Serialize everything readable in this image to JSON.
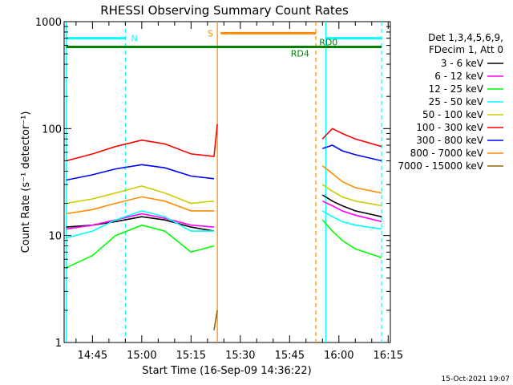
{
  "chart_data": {
    "type": "line",
    "title": "RHESSI Observing Summary Count Rates",
    "xlabel": "Start Time (16-Sep-09 14:36:22)",
    "ylabel": "Count Rate (s⁻¹ detector⁻¹)",
    "yscale": "log",
    "ylim": [
      1,
      1000
    ],
    "xlim": [
      "14:36:22",
      "16:15:40"
    ],
    "x_ticks": [
      "14:45",
      "15:00",
      "15:15",
      "15:30",
      "15:45",
      "16:00",
      "16:15"
    ],
    "y_ticks": [
      "1",
      "10",
      "100",
      "1000"
    ],
    "legend": {
      "position": "top-right",
      "header": [
        "Det 1,3,4,5,6,9,",
        "FDecim 1, Att 0"
      ]
    },
    "data_gap": {
      "start": "15:23",
      "end": "15:55"
    },
    "series": [
      {
        "name": "3 - 6 keV",
        "color": "#000000",
        "x": [
          "14:37",
          "14:45",
          "14:52",
          "15:00",
          "15:07",
          "15:15",
          "15:22",
          "15:55",
          "15:58",
          "16:01",
          "16:05",
          "16:13"
        ],
        "values": [
          12,
          12.5,
          13.5,
          15,
          14,
          12,
          11,
          24,
          21,
          19,
          17,
          15
        ]
      },
      {
        "name": "6 - 12 keV",
        "color": "#ff00ff",
        "x": [
          "14:37",
          "14:45",
          "14:52",
          "15:00",
          "15:07",
          "15:15",
          "15:22",
          "15:55",
          "15:58",
          "16:01",
          "16:05",
          "16:13"
        ],
        "values": [
          11.5,
          12.5,
          14,
          16,
          14.5,
          12.5,
          12,
          21,
          19,
          17,
          15.5,
          13.5
        ]
      },
      {
        "name": "12 - 25 keV",
        "color": "#00ff00",
        "x": [
          "14:37",
          "14:45",
          "14:52",
          "15:00",
          "15:07",
          "15:15",
          "15:22",
          "15:55",
          "15:58",
          "16:01",
          "16:05",
          "16:13"
        ],
        "values": [
          5,
          6.5,
          10,
          12.5,
          11,
          7,
          8,
          14,
          11,
          9,
          7.5,
          6.2
        ]
      },
      {
        "name": "25 - 50 keV",
        "color": "#00ffff",
        "x": [
          "14:37",
          "14:45",
          "14:52",
          "15:00",
          "15:07",
          "15:15",
          "15:22",
          "15:55",
          "15:58",
          "16:01",
          "16:05",
          "16:13"
        ],
        "values": [
          9.5,
          11,
          14,
          17,
          15,
          11,
          11,
          17,
          15,
          13.5,
          12.5,
          11.5
        ]
      },
      {
        "name": "50 - 100 keV",
        "color": "#cccc00",
        "x": [
          "14:37",
          "14:45",
          "14:52",
          "15:00",
          "15:07",
          "15:15",
          "15:22",
          "15:55",
          "15:58",
          "16:01",
          "16:05",
          "16:13"
        ],
        "values": [
          20,
          22,
          25,
          29,
          25,
          20,
          21,
          30,
          26,
          23,
          21,
          19
        ]
      },
      {
        "name": "100 - 300 keV",
        "color": "#ff0000",
        "x": [
          "14:37",
          "14:45",
          "14:52",
          "15:00",
          "15:07",
          "15:15",
          "15:22",
          "15:23",
          "15:55",
          "15:58",
          "16:01",
          "16:05",
          "16:13"
        ],
        "values": [
          50,
          58,
          68,
          78,
          72,
          58,
          55,
          110,
          80,
          100,
          90,
          80,
          68
        ]
      },
      {
        "name": "300 - 800 keV",
        "color": "#0000ff",
        "x": [
          "14:37",
          "14:45",
          "14:52",
          "15:00",
          "15:07",
          "15:15",
          "15:22",
          "15:55",
          "15:58",
          "16:01",
          "16:05",
          "16:13"
        ],
        "values": [
          33,
          37,
          42,
          46,
          43,
          36,
          34,
          65,
          70,
          62,
          57,
          50
        ]
      },
      {
        "name": "800 - 7000 keV",
        "color": "#ff8c00",
        "x": [
          "14:37",
          "14:45",
          "14:52",
          "15:00",
          "15:07",
          "15:15",
          "15:22",
          "15:55",
          "15:58",
          "16:01",
          "16:05",
          "16:13"
        ],
        "values": [
          16,
          17.5,
          20,
          23,
          21,
          17,
          17,
          45,
          38,
          32,
          28,
          25
        ]
      },
      {
        "name": "7000 - 15000 keV",
        "color": "#996600",
        "x": [
          "15:22",
          "15:23"
        ],
        "values": [
          1.3,
          2
        ]
      }
    ],
    "annotations": [
      {
        "label": "N",
        "color": "#00ffff",
        "level": 700,
        "segments": [
          [
            "14:37",
            "14:55"
          ],
          [
            "15:56",
            "16:13"
          ]
        ]
      },
      {
        "label": "S",
        "color": "#ff8c00",
        "level": 780,
        "segments": [
          [
            "15:24",
            "15:53"
          ]
        ]
      },
      {
        "label": "RD0",
        "color": "#008000",
        "level": 580,
        "segments": [
          [
            "14:37",
            "16:13"
          ]
        ]
      },
      {
        "label": "RD4",
        "color": "#008000",
        "level": 580,
        "segments": []
      }
    ],
    "vertical_markers": [
      {
        "x": "14:37",
        "color": "#00ffff",
        "style": "solid"
      },
      {
        "x": "14:55",
        "color": "#00ffff",
        "style": "dashed"
      },
      {
        "x": "15:23",
        "color": "#ff8c00",
        "style": "solid"
      },
      {
        "x": "15:53",
        "color": "#ff8c00",
        "style": "dashed"
      },
      {
        "x": "15:56",
        "color": "#00ffff",
        "style": "solid"
      },
      {
        "x": "16:13",
        "color": "#00ffff",
        "style": "dashed"
      }
    ],
    "footer": "15-Oct-2021 19:07"
  }
}
